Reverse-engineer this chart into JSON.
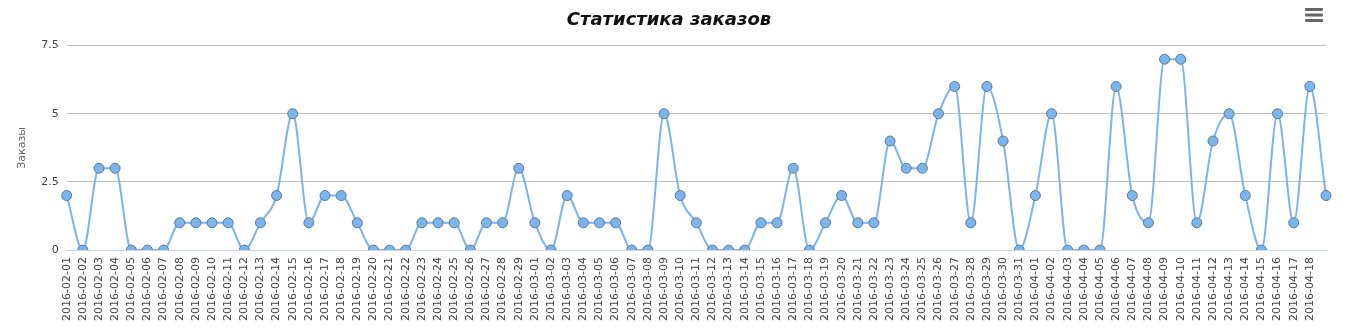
{
  "chart_data": {
    "type": "line",
    "title": "Статистика заказов",
    "ylabel": "Заказы",
    "categories": [
      "2016-02-01",
      "2016-02-02",
      "2016-02-03",
      "2016-02-04",
      "2016-02-05",
      "2016-02-06",
      "2016-02-07",
      "2016-02-08",
      "2016-02-09",
      "2016-02-10",
      "2016-02-11",
      "2016-02-12",
      "2016-02-13",
      "2016-02-14",
      "2016-02-15",
      "2016-02-16",
      "2016-02-17",
      "2016-02-18",
      "2016-02-19",
      "2016-02-20",
      "2016-02-21",
      "2016-02-22",
      "2016-02-23",
      "2016-02-24",
      "2016-02-25",
      "2016-02-26",
      "2016-02-27",
      "2016-02-28",
      "2016-02-29",
      "2016-03-01",
      "2016-03-02",
      "2016-03-03",
      "2016-03-04",
      "2016-03-05",
      "2016-03-06",
      "2016-03-07",
      "2016-03-08",
      "2016-03-09",
      "2016-03-10",
      "2016-03-11",
      "2016-03-12",
      "2016-03-13",
      "2016-03-14",
      "2016-03-15",
      "2016-03-16",
      "2016-03-17",
      "2016-03-18",
      "2016-03-19",
      "2016-03-20",
      "2016-03-21",
      "2016-03-22",
      "2016-03-23",
      "2016-03-24",
      "2016-03-25",
      "2016-03-26",
      "2016-03-27",
      "2016-03-28",
      "2016-03-29",
      "2016-03-30",
      "2016-03-31",
      "2016-04-01",
      "2016-04-02",
      "2016-04-03",
      "2016-04-04",
      "2016-04-05",
      "2016-04-06",
      "2016-04-07",
      "2016-04-08",
      "2016-04-09",
      "2016-04-10",
      "2016-04-11",
      "2016-04-12",
      "2016-04-13",
      "2016-04-14",
      "2016-04-15",
      "2016-04-16",
      "2016-04-17",
      "2016-04-18",
      null
    ],
    "series": [
      {
        "color": "#7cb5ec",
        "values": [
          2,
          0,
          3,
          3,
          0,
          0,
          0,
          1,
          1,
          1,
          1,
          0,
          1,
          2,
          5,
          1,
          2,
          2,
          1,
          0,
          0,
          0,
          1,
          1,
          1,
          0,
          1,
          1,
          3,
          1,
          0,
          2,
          1,
          1,
          1,
          0,
          0,
          5,
          2,
          1,
          0,
          0,
          0,
          1,
          1,
          3,
          0,
          1,
          2,
          1,
          1,
          4,
          3,
          3,
          5,
          6,
          1,
          6,
          4,
          0,
          2,
          5,
          0,
          0,
          0,
          6,
          2,
          1,
          7,
          7,
          1,
          4,
          5,
          2,
          0,
          5,
          1,
          6,
          2
        ]
      }
    ],
    "ylim": [
      0,
      7.5
    ],
    "yticks": [
      0,
      2.5,
      5,
      7.5
    ],
    "grid": "y",
    "legend": false,
    "marker": "circle",
    "line_style": "solid"
  }
}
